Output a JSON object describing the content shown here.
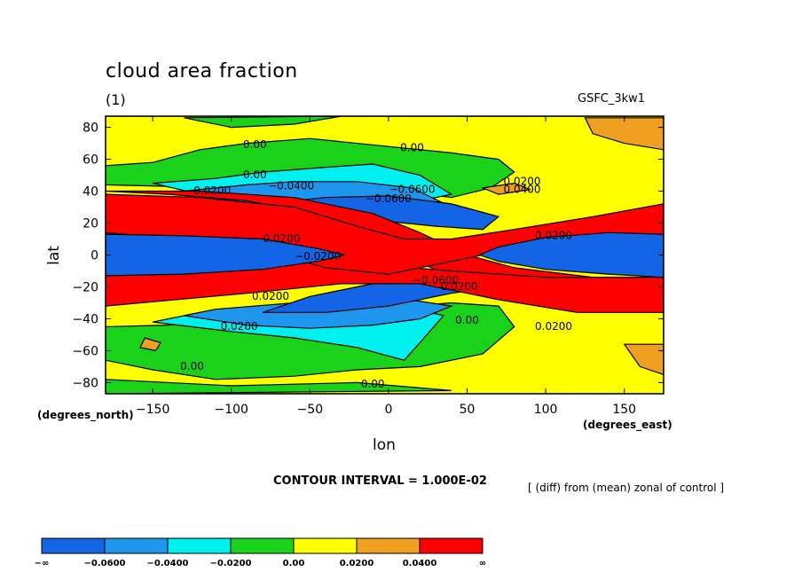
{
  "header": {
    "title": "cloud area fraction",
    "subtitle": "(1)",
    "dataset": "GSFC_3kw1"
  },
  "footer": {
    "contour_interval": "CONTOUR INTERVAL = 1.000E-02",
    "note": "[ (diff) from (mean) zonal of control ]"
  },
  "chart_data": {
    "type": "heatmap",
    "title": "cloud area fraction",
    "subtitle": "(1)",
    "xlabel": "lon",
    "ylabel": "lat",
    "x_units": "(degrees_east)",
    "y_units": "(degrees_north)",
    "xlim": [
      -180,
      175
    ],
    "ylim": [
      -87,
      87
    ],
    "x_ticks": [
      -150,
      -100,
      -50,
      0,
      50,
      100,
      150
    ],
    "x_tick_labels": [
      "−150",
      "−100",
      "−50",
      "0",
      "50",
      "100",
      "150"
    ],
    "y_ticks": [
      -80,
      -60,
      -40,
      -20,
      0,
      20,
      40,
      60,
      80
    ],
    "y_tick_labels": [
      "−80",
      "−60",
      "−40",
      "−20",
      "0",
      "20",
      "40",
      "60",
      "80"
    ],
    "colorbar": {
      "levels": [
        -0.06,
        -0.04,
        -0.02,
        0.0,
        0.02,
        0.04
      ],
      "labels": [
        "−∞",
        "−0.0600",
        "−0.0400",
        "−0.0200",
        "0.00",
        "0.0200",
        "0.0400",
        "∞"
      ],
      "colors": [
        "#1464e6",
        "#1e96ee",
        "#00f0f0",
        "#19d219",
        "#ffff00",
        "#f0a020",
        "#ff0000"
      ]
    },
    "contour_labels": [
      {
        "text": "0.00",
        "lon": -85,
        "lat": 67
      },
      {
        "text": "0.00",
        "lon": 15,
        "lat": 65
      },
      {
        "text": "0.00",
        "lon": -85,
        "lat": 48
      },
      {
        "text": "−0.0400",
        "lon": -62,
        "lat": 41
      },
      {
        "text": "−0.0200",
        "lon": -115,
        "lat": 38
      },
      {
        "text": "−0.0600",
        "lon": 0,
        "lat": 33
      },
      {
        "text": "−0.0600",
        "lon": 15,
        "lat": 39
      },
      {
        "text": "0.0200",
        "lon": 85,
        "lat": 44
      },
      {
        "text": "0.0400",
        "lon": 85,
        "lat": 39
      },
      {
        "text": "0.0200",
        "lon": -68,
        "lat": 8
      },
      {
        "text": "−0.0200",
        "lon": -45,
        "lat": -3
      },
      {
        "text": "0.0200",
        "lon": 105,
        "lat": 10
      },
      {
        "text": "−0.0600",
        "lon": 30,
        "lat": -18
      },
      {
        "text": "0.0200",
        "lon": 45,
        "lat": -22
      },
      {
        "text": "0.0200",
        "lon": -75,
        "lat": -28
      },
      {
        "text": "0.00",
        "lon": 50,
        "lat": -43
      },
      {
        "text": "0.0200",
        "lon": -95,
        "lat": -47
      },
      {
        "text": "0.0200",
        "lon": 105,
        "lat": -47
      },
      {
        "text": "0.00",
        "lon": -125,
        "lat": -72
      },
      {
        "text": "0.00",
        "lon": -10,
        "lat": -83
      }
    ]
  }
}
